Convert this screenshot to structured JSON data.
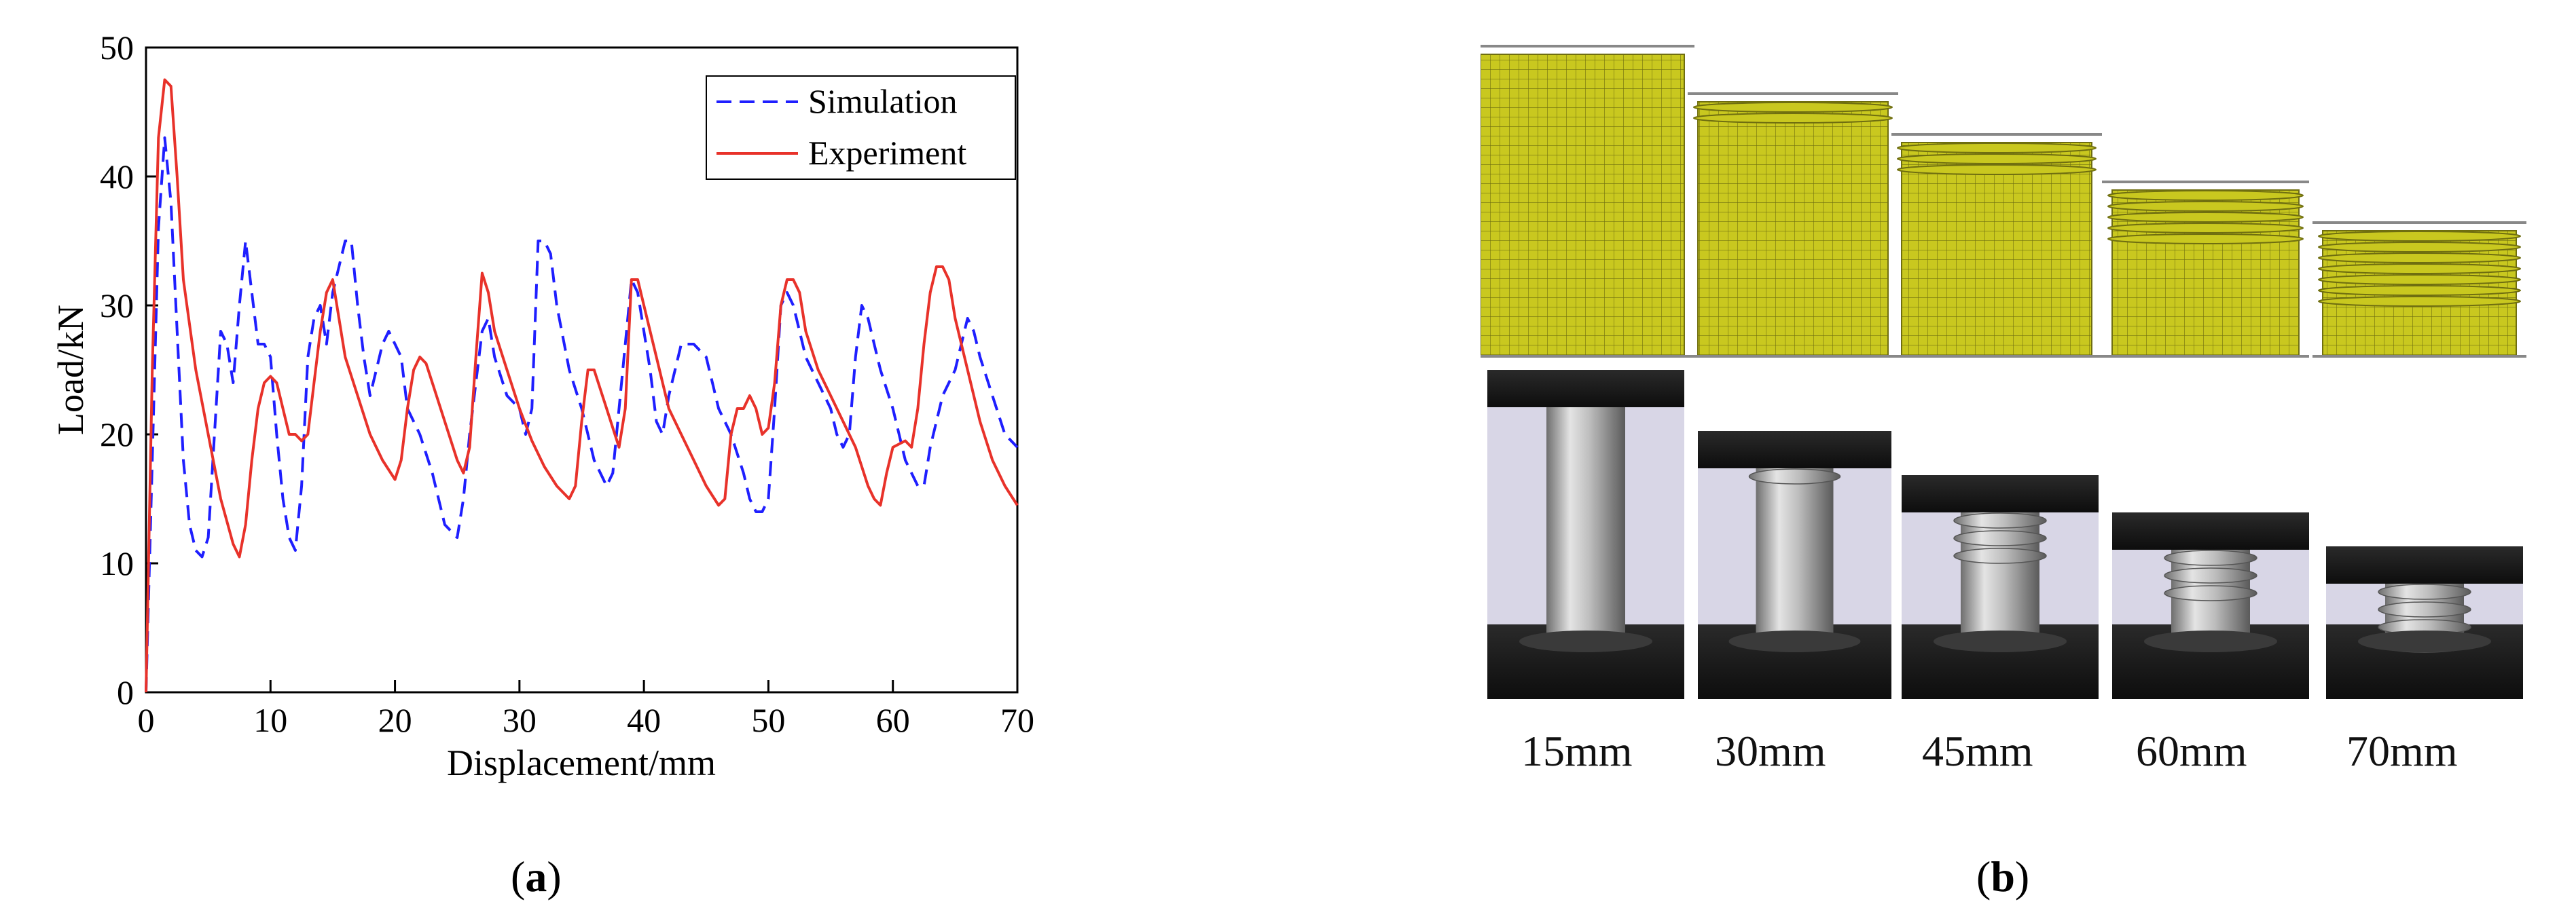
{
  "figure": {
    "panel_a_caption": "a",
    "panel_b_caption": "b"
  },
  "chart_data": {
    "type": "line",
    "xlabel": "Displacement/mm",
    "ylabel": "Load/kN",
    "xlim": [
      0,
      70
    ],
    "ylim": [
      0,
      50
    ],
    "xticks": [
      0,
      10,
      20,
      30,
      40,
      50,
      60,
      70
    ],
    "yticks": [
      0,
      10,
      20,
      30,
      40,
      50
    ],
    "grid": false,
    "legend_position": "top-right",
    "series": [
      {
        "name": "Simulation",
        "color": "#1f1fff",
        "style": "dashed",
        "points": [
          [
            0,
            0
          ],
          [
            0.5,
            18
          ],
          [
            1,
            36
          ],
          [
            1.5,
            43
          ],
          [
            2,
            38
          ],
          [
            2.5,
            28
          ],
          [
            3,
            18
          ],
          [
            3.5,
            13
          ],
          [
            4,
            11
          ],
          [
            4.5,
            10.5
          ],
          [
            5,
            12
          ],
          [
            5.5,
            20
          ],
          [
            6,
            28
          ],
          [
            6.5,
            27
          ],
          [
            7,
            24
          ],
          [
            7.5,
            30
          ],
          [
            8,
            35
          ],
          [
            8.5,
            31
          ],
          [
            9,
            27
          ],
          [
            9.5,
            27
          ],
          [
            10,
            26
          ],
          [
            10.5,
            20
          ],
          [
            11,
            15
          ],
          [
            11.5,
            12
          ],
          [
            12,
            11
          ],
          [
            12.5,
            16
          ],
          [
            13,
            26
          ],
          [
            13.5,
            29
          ],
          [
            14,
            30
          ],
          [
            14.5,
            27
          ],
          [
            15,
            31
          ],
          [
            15.5,
            33
          ],
          [
            16,
            35
          ],
          [
            16.5,
            35
          ],
          [
            17,
            30
          ],
          [
            17.5,
            26
          ],
          [
            18,
            23
          ],
          [
            18.5,
            25
          ],
          [
            19,
            27
          ],
          [
            19.5,
            28
          ],
          [
            20,
            27
          ],
          [
            20.5,
            26
          ],
          [
            21,
            22
          ],
          [
            22,
            20
          ],
          [
            23,
            17
          ],
          [
            24,
            13
          ],
          [
            25,
            12
          ],
          [
            25.5,
            15
          ],
          [
            26,
            20
          ],
          [
            26.5,
            24
          ],
          [
            27,
            28
          ],
          [
            27.5,
            29
          ],
          [
            28,
            26
          ],
          [
            29,
            23
          ],
          [
            30,
            22
          ],
          [
            30.5,
            20
          ],
          [
            31,
            22
          ],
          [
            31.5,
            35
          ],
          [
            32,
            35
          ],
          [
            32.5,
            34
          ],
          [
            33,
            30
          ],
          [
            34,
            25
          ],
          [
            35,
            22
          ],
          [
            36,
            18
          ],
          [
            37,
            16
          ],
          [
            37.5,
            17
          ],
          [
            38,
            22
          ],
          [
            38.5,
            27
          ],
          [
            39,
            32
          ],
          [
            39.5,
            31
          ],
          [
            40,
            28
          ],
          [
            40.5,
            25
          ],
          [
            41,
            21
          ],
          [
            41.5,
            20
          ],
          [
            42,
            23
          ],
          [
            42.5,
            25
          ],
          [
            43,
            27
          ],
          [
            44,
            27
          ],
          [
            45,
            26
          ],
          [
            45.5,
            24
          ],
          [
            46,
            22
          ],
          [
            47,
            20
          ],
          [
            48,
            17
          ],
          [
            48.5,
            15
          ],
          [
            49,
            14
          ],
          [
            49.5,
            14
          ],
          [
            50,
            15
          ],
          [
            50.5,
            22
          ],
          [
            51,
            30
          ],
          [
            51.5,
            31
          ],
          [
            52,
            30
          ],
          [
            52.5,
            28
          ],
          [
            53,
            26
          ],
          [
            54,
            24
          ],
          [
            55,
            22
          ],
          [
            55.5,
            20
          ],
          [
            56,
            19
          ],
          [
            56.5,
            20
          ],
          [
            57,
            26
          ],
          [
            57.5,
            30
          ],
          [
            58,
            29
          ],
          [
            58.5,
            27
          ],
          [
            59,
            25
          ],
          [
            60,
            22
          ],
          [
            61,
            18
          ],
          [
            62,
            16
          ],
          [
            62.5,
            16
          ],
          [
            63,
            19
          ],
          [
            64,
            23
          ],
          [
            65,
            25
          ],
          [
            65.5,
            27
          ],
          [
            66,
            29
          ],
          [
            66.5,
            28
          ],
          [
            67,
            26
          ],
          [
            68,
            23
          ],
          [
            69,
            20
          ],
          [
            70,
            19
          ]
        ]
      },
      {
        "name": "Experiment",
        "color": "#e8322a",
        "style": "solid",
        "points": [
          [
            0,
            0
          ],
          [
            0.5,
            25
          ],
          [
            1,
            43
          ],
          [
            1.5,
            47.5
          ],
          [
            2,
            47
          ],
          [
            2.5,
            40
          ],
          [
            3,
            32
          ],
          [
            4,
            25
          ],
          [
            5,
            20
          ],
          [
            6,
            15
          ],
          [
            7,
            11.5
          ],
          [
            7.5,
            10.5
          ],
          [
            8,
            13
          ],
          [
            8.5,
            18
          ],
          [
            9,
            22
          ],
          [
            9.5,
            24
          ],
          [
            10,
            24.5
          ],
          [
            10.5,
            24
          ],
          [
            11,
            22
          ],
          [
            11.5,
            20
          ],
          [
            12,
            20
          ],
          [
            12.5,
            19.5
          ],
          [
            13,
            20
          ],
          [
            13.5,
            24
          ],
          [
            14,
            28
          ],
          [
            14.5,
            31
          ],
          [
            15,
            32
          ],
          [
            15.5,
            29
          ],
          [
            16,
            26
          ],
          [
            17,
            23
          ],
          [
            18,
            20
          ],
          [
            19,
            18
          ],
          [
            20,
            16.5
          ],
          [
            20.5,
            18
          ],
          [
            21,
            22
          ],
          [
            21.5,
            25
          ],
          [
            22,
            26
          ],
          [
            22.5,
            25.5
          ],
          [
            23,
            24
          ],
          [
            24,
            21
          ],
          [
            25,
            18
          ],
          [
            25.5,
            17
          ],
          [
            26,
            19
          ],
          [
            26.5,
            26
          ],
          [
            27,
            32.5
          ],
          [
            27.5,
            31
          ],
          [
            28,
            28
          ],
          [
            29,
            25
          ],
          [
            30,
            22
          ],
          [
            31,
            19.5
          ],
          [
            32,
            17.5
          ],
          [
            33,
            16
          ],
          [
            34,
            15
          ],
          [
            34.5,
            16
          ],
          [
            35,
            21
          ],
          [
            35.5,
            25
          ],
          [
            36,
            25
          ],
          [
            37,
            22
          ],
          [
            38,
            19
          ],
          [
            38.5,
            22
          ],
          [
            39,
            32
          ],
          [
            39.5,
            32
          ],
          [
            40,
            30
          ],
          [
            41,
            26
          ],
          [
            42,
            22
          ],
          [
            43,
            20
          ],
          [
            44,
            18
          ],
          [
            45,
            16
          ],
          [
            46,
            14.5
          ],
          [
            46.5,
            15
          ],
          [
            47,
            20
          ],
          [
            47.5,
            22
          ],
          [
            48,
            22
          ],
          [
            48.5,
            23
          ],
          [
            49,
            22
          ],
          [
            49.5,
            20
          ],
          [
            50,
            20.5
          ],
          [
            50.5,
            24
          ],
          [
            51,
            30
          ],
          [
            51.5,
            32
          ],
          [
            52,
            32
          ],
          [
            52.5,
            31
          ],
          [
            53,
            28
          ],
          [
            54,
            25
          ],
          [
            55,
            23
          ],
          [
            56,
            21
          ],
          [
            57,
            19
          ],
          [
            58,
            16
          ],
          [
            58.5,
            15
          ],
          [
            59,
            14.5
          ],
          [
            59.5,
            17
          ],
          [
            60,
            19
          ],
          [
            61,
            19.5
          ],
          [
            61.5,
            19
          ],
          [
            62,
            22
          ],
          [
            62.5,
            27
          ],
          [
            63,
            31
          ],
          [
            63.5,
            33
          ],
          [
            64,
            33
          ],
          [
            64.5,
            32
          ],
          [
            65,
            29
          ],
          [
            66,
            25
          ],
          [
            67,
            21
          ],
          [
            68,
            18
          ],
          [
            69,
            16
          ],
          [
            70,
            14.5
          ]
        ]
      }
    ]
  },
  "photos": {
    "stages": [
      "15mm",
      "30mm",
      "45mm",
      "60mm",
      "70mm"
    ],
    "colors": {
      "mesh_fill": "#c9c81f",
      "mesh_line": "#6f6e10",
      "metal": "#b9b9b9",
      "platen": "#1a1a1a",
      "backdrop": "#d8d6e6"
    }
  }
}
